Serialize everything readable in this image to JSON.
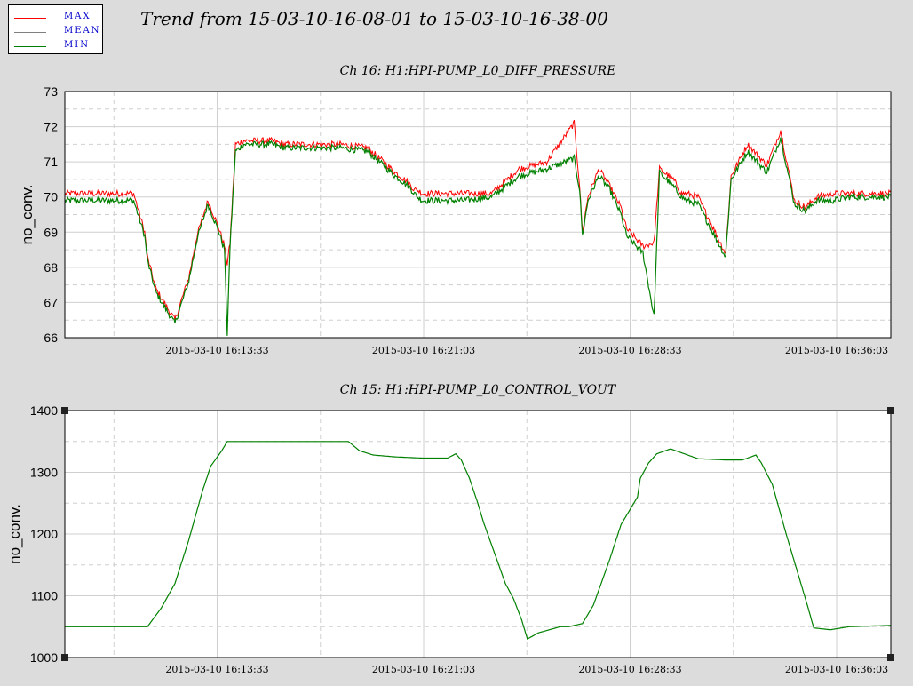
{
  "title": "Trend from 15-03-10-16-08-01 to 15-03-10-16-38-00",
  "legend": [
    {
      "label": "MAX",
      "color": "#ff0000"
    },
    {
      "label": "MEAN",
      "color": "#808080"
    },
    {
      "label": "MIN",
      "color": "#008000"
    }
  ],
  "colors": {
    "background": "#dcdcdc",
    "plot_bg": "#ffffff",
    "grid": "#cfcfcf",
    "max": "#ff0000",
    "mean": "#808080",
    "min": "#008000"
  },
  "chart_data": [
    {
      "type": "line",
      "title": "Ch 16: H1:HPI-PUMP_L0_DIFF_PRESSURE",
      "ylabel": "no_conv.",
      "xlabel": "",
      "ylim": [
        66,
        73
      ],
      "yticks": [
        66,
        67,
        68,
        69,
        70,
        71,
        72,
        73
      ],
      "xticks": [
        "2015-03-10 16:13:33",
        "2015-03-10 16:21:03",
        "2015-03-10 16:28:33",
        "2015-03-10 16:36:03"
      ],
      "x_range_minutes": [
        0,
        30
      ],
      "grid": true,
      "series": [
        {
          "name": "MIN",
          "x": [
            0,
            2.5,
            2.9,
            3.0,
            3.3,
            3.6,
            4.0,
            4.5,
            4.8,
            5.2,
            5.6,
            5.8,
            5.9,
            6.0,
            6.2,
            6.5,
            7.0,
            7.5,
            8.0,
            9.0,
            10.0,
            11.0,
            12.0,
            12.5,
            12.7,
            12.8,
            13.0,
            13.3,
            13.5,
            14.5,
            15.5,
            16.5,
            17.5,
            18.5,
            18.7,
            18.8,
            19.0,
            19.4,
            19.8,
            20.2,
            20.4,
            21.0,
            21.4,
            21.6,
            22.1,
            22.4,
            22.6,
            23.0,
            24.0,
            24.2,
            24.8,
            25.5,
            26.0,
            26.5,
            26.9,
            27.3,
            27.9,
            28.5,
            29.0,
            30.0
          ],
          "values": [
            69.9,
            69.9,
            68.9,
            68.2,
            67.3,
            66.9,
            66.4,
            67.6,
            68.8,
            69.8,
            69.0,
            68.5,
            66.1,
            68.6,
            71.3,
            71.5,
            71.5,
            71.5,
            71.4,
            71.4,
            71.4,
            71.3,
            70.6,
            70.3,
            70.1,
            70.0,
            69.9,
            69.9,
            69.9,
            69.9,
            70.0,
            70.6,
            70.8,
            71.1,
            70.2,
            68.9,
            69.9,
            70.6,
            70.2,
            69.5,
            68.9,
            68.4,
            66.6,
            70.7,
            70.3,
            70.0,
            69.9,
            69.8,
            68.3,
            70.5,
            71.3,
            70.7,
            71.7,
            69.8,
            69.6,
            69.9,
            69.9,
            70.0,
            70.0,
            70.0
          ]
        },
        {
          "name": "MAX",
          "x": [
            0,
            2.5,
            2.9,
            3.0,
            3.3,
            3.6,
            4.0,
            4.5,
            4.8,
            5.2,
            5.6,
            5.8,
            5.9,
            6.0,
            6.2,
            6.5,
            7.0,
            7.5,
            8.0,
            9.0,
            10.0,
            11.0,
            12.0,
            12.5,
            12.7,
            12.8,
            13.0,
            13.3,
            13.5,
            14.5,
            15.5,
            16.5,
            17.5,
            18.5,
            18.7,
            18.8,
            19.0,
            19.4,
            19.8,
            20.2,
            20.4,
            21.0,
            21.4,
            21.6,
            22.1,
            22.4,
            22.6,
            23.0,
            24.0,
            24.2,
            24.8,
            25.5,
            26.0,
            26.5,
            26.9,
            27.3,
            27.9,
            28.5,
            29.0,
            30.0
          ],
          "values": [
            70.1,
            70.1,
            69.0,
            68.3,
            67.4,
            67.0,
            66.5,
            67.7,
            68.9,
            69.9,
            69.1,
            68.6,
            68.1,
            68.7,
            71.5,
            71.6,
            71.6,
            71.6,
            71.5,
            71.5,
            71.5,
            71.4,
            70.7,
            70.4,
            70.2,
            70.2,
            70.1,
            70.1,
            70.1,
            70.1,
            70.1,
            70.8,
            71.0,
            72.1,
            70.3,
            69.0,
            70.0,
            70.8,
            70.3,
            69.7,
            69.1,
            68.6,
            68.7,
            70.8,
            70.5,
            70.1,
            70.1,
            70.0,
            68.4,
            70.6,
            71.5,
            70.9,
            71.9,
            69.9,
            69.7,
            70.0,
            70.1,
            70.1,
            70.1,
            70.1
          ]
        }
      ]
    },
    {
      "type": "line",
      "title": "Ch 15: H1:HPI-PUMP_L0_CONTROL_VOUT",
      "ylabel": "no_conv.",
      "xlabel": "",
      "ylim": [
        1000,
        1400
      ],
      "yticks": [
        1000,
        1100,
        1200,
        1300,
        1400
      ],
      "xticks": [
        "2015-03-10 16:13:33",
        "2015-03-10 16:21:03",
        "2015-03-10 16:28:33",
        "2015-03-10 16:36:03"
      ],
      "x_range_minutes": [
        0,
        30
      ],
      "grid": true,
      "series": [
        {
          "name": "MIN",
          "x": [
            0,
            2.6,
            3.0,
            3.2,
            3.5,
            4.0,
            4.5,
            5.0,
            5.3,
            5.7,
            5.9,
            6.2,
            7.0,
            10.3,
            10.7,
            11.2,
            12.0,
            13.0,
            13.9,
            14.2,
            14.4,
            14.7,
            15.0,
            15.2,
            15.6,
            16.0,
            16.3,
            16.6,
            16.8,
            17.2,
            18.0,
            18.3,
            18.8,
            19.2,
            19.8,
            20.2,
            20.8,
            20.9,
            21.2,
            21.5,
            22.0,
            23.0,
            24.0,
            24.6,
            24.8,
            25.1,
            25.3,
            25.7,
            26.2,
            26.6,
            27.0,
            27.2,
            27.8,
            28.5,
            30.0
          ],
          "values": [
            1050,
            1050,
            1050,
            1062,
            1080,
            1120,
            1190,
            1270,
            1310,
            1335,
            1350,
            1350,
            1350,
            1350,
            1335,
            1328,
            1325,
            1323,
            1323,
            1330,
            1320,
            1290,
            1250,
            1220,
            1170,
            1120,
            1095,
            1060,
            1030,
            1040,
            1050,
            1050,
            1055,
            1085,
            1160,
            1215,
            1260,
            1290,
            1315,
            1330,
            1338,
            1322,
            1320,
            1320,
            1323,
            1328,
            1315,
            1280,
            1200,
            1140,
            1080,
            1048,
            1045,
            1050,
            1052
          ]
        }
      ]
    }
  ]
}
